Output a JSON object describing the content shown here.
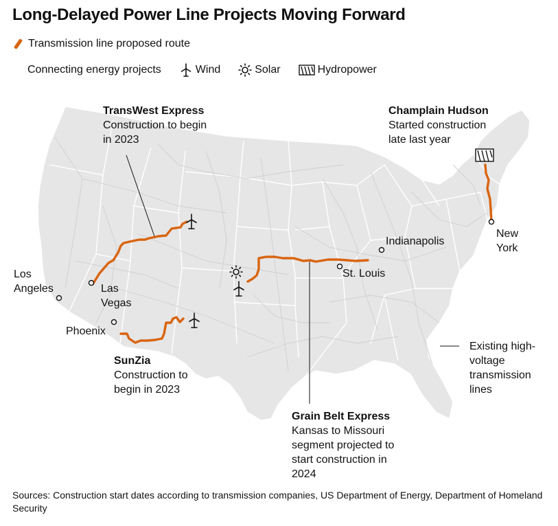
{
  "title": "Long-Delayed Power Line Projects Moving Forward",
  "legend": {
    "route_label": "Transmission line proposed route",
    "projects_label": "Connecting energy projects",
    "wind_label": "Wind",
    "wind_icon": "wind-turbine-icon",
    "solar_label": "Solar",
    "solar_icon": "sun-icon",
    "hydro_label": "Hydropower",
    "hydro_icon": "dam-icon"
  },
  "colors": {
    "route": "#d9640f",
    "land": "#e6e6e6",
    "border": "#ffffff",
    "grid": "#cfcfcf"
  },
  "projects": {
    "transwest": {
      "name": "TransWest Express",
      "line1": "Construction to begin",
      "line2": "in 2023"
    },
    "champlain": {
      "name": "Champlain Hudson",
      "line1": "Started construction",
      "line2": "late last year"
    },
    "sunzia": {
      "name": "SunZia",
      "line1": "Construction to",
      "line2": "begin in 2023"
    },
    "grainbelt": {
      "name": "Grain Belt Express",
      "line1": "Kansas to Missouri",
      "line2": "segment projected to",
      "line3": "start construction in",
      "line4": "2024"
    }
  },
  "cities": {
    "los_angeles_1": "Los",
    "los_angeles_2": "Angeles",
    "las_vegas_1": "Las",
    "las_vegas_2": "Vegas",
    "phoenix": "Phoenix",
    "indianapolis": "Indianapolis",
    "st_louis": "St. Louis",
    "new_york_1": "New",
    "new_york_2": "York"
  },
  "existing_lines_label": {
    "line1": "Existing high-",
    "line2": "voltage",
    "line3": "transmission",
    "line4": "lines"
  },
  "sources": "Sources: Construction start dates according to transmission companies, US Department of Energy, Department of Homeland Security"
}
